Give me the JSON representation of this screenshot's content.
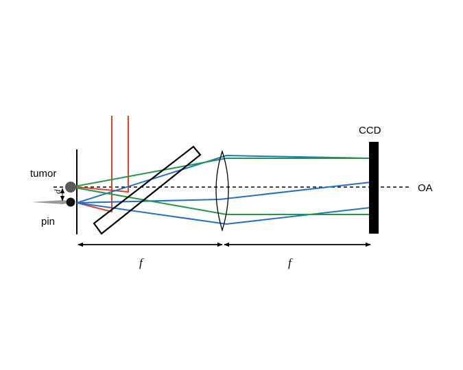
{
  "labels": {
    "tumor": "tumor",
    "pin": "pin",
    "d": "d",
    "ccd": "CCD",
    "oa": "OA",
    "f_left": "f",
    "f_right": "f"
  },
  "colors": {
    "ink": "#000000",
    "red_beam": "#e8401c",
    "green_ray": "#1f9a4a",
    "blue_ray": "#1e6fd0",
    "tumor_dot": "#5a5a5a",
    "pin_dot": "#111111",
    "pin_needle": "#9a9a9a"
  }
}
